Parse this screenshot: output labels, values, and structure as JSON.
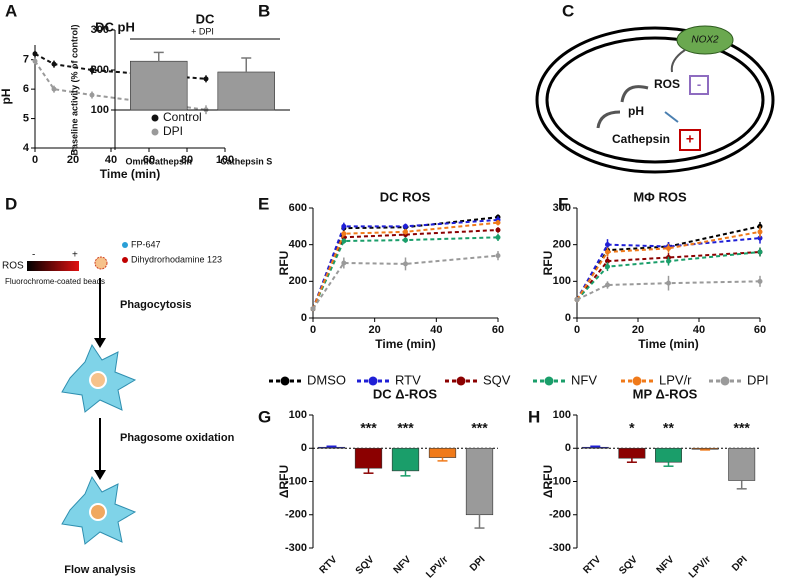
{
  "chart_data": [
    {
      "label": "A",
      "type": "line",
      "title": "DC pH",
      "xlabel": "Time (min)",
      "ylabel": "pH",
      "x": [
        0,
        10,
        30,
        60,
        90
      ],
      "xlim": [
        0,
        100
      ],
      "xticks": [
        0,
        20,
        40,
        60,
        80,
        100
      ],
      "ylim": [
        4,
        7.5
      ],
      "yticks": [
        4,
        5,
        6,
        7
      ],
      "dashed": true,
      "legend": "lower right",
      "series": [
        {
          "name": "Control",
          "color": "#111111",
          "values": [
            7.2,
            6.85,
            6.65,
            6.5,
            6.35
          ],
          "errors": [
            0.1,
            0.12,
            0.15,
            0.12,
            0.12
          ]
        },
        {
          "name": "DPI",
          "color": "#9a9a9a",
          "values": [
            6.95,
            6.0,
            5.8,
            5.55,
            5.3
          ],
          "errors": [
            0.1,
            0.12,
            0.12,
            0.1,
            0.15
          ]
        }
      ]
    },
    {
      "label": "B",
      "type": "bar",
      "title": "DC",
      "ylabel": "Baseline activity (% of control)",
      "annotation": "+ DPI",
      "categories": [
        "OmniCathepsin",
        "Cathepsin S"
      ],
      "values": [
        222,
        195
      ],
      "errors": [
        22,
        35
      ],
      "color": "#9a9a9a",
      "baseline": 100,
      "ylim": [
        0,
        300
      ],
      "yticks": [
        100,
        200,
        300
      ]
    },
    {
      "label": "E",
      "type": "line",
      "title": "DC ROS",
      "xlabel": "Time (min)",
      "ylabel": "RFU",
      "x": [
        0,
        10,
        30,
        60
      ],
      "xlim": [
        0,
        60
      ],
      "xticks": [
        0,
        20,
        40,
        60
      ],
      "ylim": [
        0,
        600
      ],
      "yticks": [
        0,
        200,
        400,
        600
      ],
      "dashed": true,
      "legend": "below",
      "series": [
        {
          "name": "DMSO",
          "color": "#000000",
          "values": [
            50,
            490,
            495,
            550
          ],
          "errors": [
            5,
            15,
            15,
            15
          ]
        },
        {
          "name": "RTV",
          "color": "#1f1fd6",
          "values": [
            50,
            500,
            500,
            535
          ],
          "errors": [
            5,
            20,
            15,
            20
          ]
        },
        {
          "name": "SQV",
          "color": "#8b0000",
          "values": [
            50,
            440,
            455,
            480
          ],
          "errors": [
            5,
            15,
            15,
            15
          ]
        },
        {
          "name": "NFV",
          "color": "#1a9e6a",
          "values": [
            50,
            420,
            425,
            440
          ],
          "errors": [
            5,
            15,
            15,
            20
          ]
        },
        {
          "name": "LPV/r",
          "color": "#f07a1a",
          "values": [
            50,
            460,
            470,
            520
          ],
          "errors": [
            5,
            15,
            15,
            15
          ]
        },
        {
          "name": "DPI",
          "color": "#9a9a9a",
          "values": [
            50,
            300,
            295,
            340
          ],
          "errors": [
            5,
            30,
            35,
            25
          ]
        }
      ]
    },
    {
      "label": "F",
      "type": "line",
      "title": "MΦ ROS",
      "xlabel": "Time (min)",
      "ylabel": "RFU",
      "x": [
        0,
        10,
        30,
        60
      ],
      "xlim": [
        0,
        60
      ],
      "xticks": [
        0,
        20,
        40,
        60
      ],
      "ylim": [
        0,
        300
      ],
      "yticks": [
        0,
        100,
        200,
        300
      ],
      "dashed": true,
      "series": [
        {
          "name": "DMSO",
          "color": "#000000",
          "values": [
            50,
            185,
            195,
            250
          ],
          "errors": [
            5,
            15,
            12,
            12
          ]
        },
        {
          "name": "RTV",
          "color": "#1f1fd6",
          "values": [
            50,
            200,
            195,
            218
          ],
          "errors": [
            5,
            15,
            12,
            15
          ]
        },
        {
          "name": "SQV",
          "color": "#8b0000",
          "values": [
            50,
            155,
            165,
            180
          ],
          "errors": [
            5,
            12,
            12,
            12
          ]
        },
        {
          "name": "NFV",
          "color": "#1a9e6a",
          "values": [
            50,
            140,
            155,
            180
          ],
          "errors": [
            5,
            12,
            12,
            12
          ]
        },
        {
          "name": "LPV/r",
          "color": "#f07a1a",
          "values": [
            50,
            180,
            190,
            235
          ],
          "errors": [
            5,
            12,
            12,
            15
          ]
        },
        {
          "name": "DPI",
          "color": "#9a9a9a",
          "values": [
            50,
            90,
            95,
            100
          ],
          "errors": [
            5,
            10,
            20,
            15
          ]
        }
      ]
    },
    {
      "label": "G",
      "type": "bar",
      "title": "DC Δ-ROS",
      "ylabel": "ΔRFU",
      "categories": [
        "RTV",
        "SQV",
        "NFV",
        "LPV/r",
        "DPI"
      ],
      "values": [
        3,
        -60,
        -68,
        -28,
        -200
      ],
      "errors": [
        3,
        15,
        15,
        10,
        40
      ],
      "colors": [
        "#1f1fd6",
        "#8b0000",
        "#1a9e6a",
        "#f07a1a",
        "#9a9a9a"
      ],
      "significance": [
        null,
        "***",
        "***",
        null,
        "***"
      ],
      "baseline": 0,
      "ylim": [
        -300,
        100
      ],
      "yticks": [
        -300,
        -200,
        -100,
        0,
        100
      ]
    },
    {
      "label": "H",
      "type": "bar",
      "title": "MP Δ-ROS",
      "ylabel": "ΔRFU",
      "categories": [
        "RTV",
        "SQV",
        "NFV",
        "LPV/r",
        "DPI"
      ],
      "values": [
        3,
        -30,
        -42,
        -3,
        -97
      ],
      "errors": [
        3,
        12,
        12,
        2,
        25
      ],
      "colors": [
        "#1f1fd6",
        "#8b0000",
        "#1a9e6a",
        "#f07a1a",
        "#9a9a9a"
      ],
      "significance": [
        null,
        "*",
        "**",
        null,
        "***"
      ],
      "baseline": 0,
      "ylim": [
        -300,
        100
      ],
      "yticks": [
        -300,
        -200,
        -100,
        0,
        100
      ]
    }
  ],
  "diagram_c": {
    "label": "C",
    "enzyme": "NOX2",
    "ros": "ROS",
    "minus": "-",
    "ph": "pH",
    "cathepsin": "Cathepsin",
    "plus": "+"
  },
  "diagram_d": {
    "label": "D",
    "scale": "ROS",
    "scale_low": "-",
    "scale_high": "+",
    "beads": "Fluorochrome-coated beads",
    "dye1": "FP-647",
    "dye2": "Dihydrorhodamine 123",
    "step1": "Phagocytosis",
    "step2": "Phagosome oxidation",
    "step3": "Flow analysis"
  }
}
